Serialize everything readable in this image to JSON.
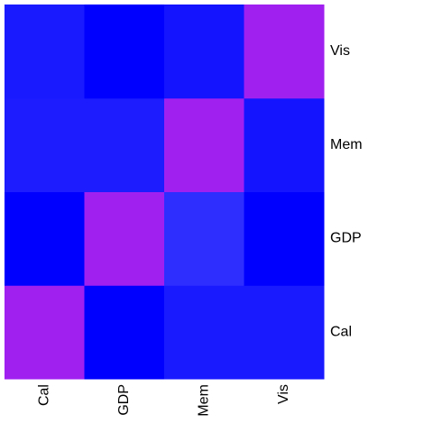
{
  "chart_data": {
    "type": "heatmap",
    "x_labels": [
      "Cal",
      "GDP",
      "Mem",
      "Vis"
    ],
    "y_labels": [
      "Cal",
      "GDP",
      "Mem",
      "Vis"
    ],
    "cells": [
      [
        1.0,
        0.0,
        0.1,
        0.1
      ],
      [
        0.0,
        1.0,
        0.2,
        0.0
      ],
      [
        0.1,
        0.1,
        1.0,
        0.1
      ],
      [
        0.1,
        0.0,
        0.1,
        1.0
      ]
    ],
    "cell_colors": [
      [
        "#a020f0",
        "#0000ff",
        "#1a1aff",
        "#1a1aff"
      ],
      [
        "#0000ff",
        "#a020f0",
        "#2e2eff",
        "#0000ff"
      ],
      [
        "#1c1cff",
        "#1c1cff",
        "#a020f0",
        "#1414ff"
      ],
      [
        "#1a1aff",
        "#0000ff",
        "#1414ff",
        "#a020f0"
      ]
    ],
    "color_scale": {
      "low": "#0000ff",
      "high": "#a020f0"
    },
    "x_label_rotation": "vertical",
    "y_label_position": "right",
    "legend": "none",
    "grid": false
  }
}
